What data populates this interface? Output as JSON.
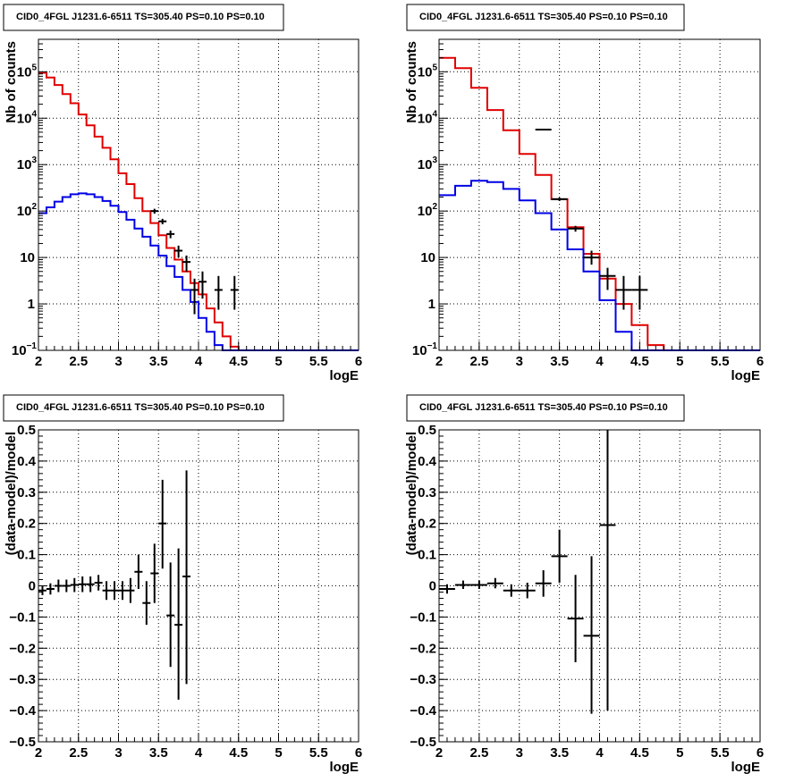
{
  "title_text": "CID0_4FGL J1231.6-6511 TS=305.40 PS=0.10 PS=0.10",
  "colors": {
    "model_total": "#e00000",
    "model_source": "#0000e6",
    "data": "#000000",
    "grid": "#000000"
  },
  "chart_data": [
    {
      "type": "line",
      "panel": "top-left",
      "title": "CID0_4FGL J1231.6-6511 TS=305.40 PS=0.10 PS=0.10",
      "xlabel": "logE",
      "ylabel": "Nb of counts",
      "xlim": [
        2,
        6
      ],
      "ylim": [
        0.1,
        500000
      ],
      "yscale": "log",
      "grid": true,
      "xticks": [
        "2",
        "2.5",
        "3",
        "3.5",
        "4",
        "4.5",
        "5",
        "5.5",
        "6"
      ],
      "yticks": [
        {
          "v": 0.1,
          "base": "10",
          "exp": "−1"
        },
        {
          "v": 1,
          "base": "1",
          "exp": ""
        },
        {
          "v": 10,
          "base": "10",
          "exp": ""
        },
        {
          "v": 100,
          "base": "10",
          "exp": "2"
        },
        {
          "v": 1000,
          "base": "10",
          "exp": "3"
        },
        {
          "v": 10000,
          "base": "10",
          "exp": "4"
        },
        {
          "v": 100000,
          "base": "10",
          "exp": "5"
        }
      ],
      "bin_edges": [
        2.0,
        2.1,
        2.2,
        2.3,
        2.4,
        2.5,
        2.6,
        2.7,
        2.8,
        2.9,
        3.0,
        3.1,
        3.2,
        3.3,
        3.4,
        3.5,
        3.6,
        3.7,
        3.8,
        3.9,
        4.0,
        4.1,
        4.2,
        4.3,
        4.4,
        4.5,
        4.6,
        4.7,
        4.8,
        4.9,
        5.0,
        5.1,
        5.2,
        5.3,
        5.4,
        5.5,
        5.6,
        5.7,
        5.8,
        5.9,
        6.0
      ],
      "series": [
        {
          "role": "model_total",
          "values": [
            95000,
            75000,
            52000,
            33000,
            21000,
            12000,
            7000,
            4000,
            2300,
            1300,
            650,
            380,
            190,
            100,
            55,
            30,
            16,
            9,
            5,
            2.8,
            1.6,
            0.8,
            0.4,
            0.2,
            0.12,
            0.1,
            0.1,
            0.1,
            0.1,
            0.1,
            0.1,
            0.1,
            0.1,
            0.1,
            0.1,
            0.1,
            0.1,
            0.1,
            0.1,
            0.1
          ]
        },
        {
          "role": "model_source",
          "values": [
            90,
            120,
            160,
            200,
            230,
            240,
            230,
            200,
            165,
            130,
            95,
            65,
            42,
            28,
            18,
            11,
            6.5,
            3.8,
            2,
            1.1,
            0.5,
            0.25,
            0.13,
            0.1,
            0.1,
            0.1,
            0.1,
            0.1,
            0.1,
            0.1,
            0.1,
            0.1,
            0.1,
            0.1,
            0.1,
            0.1,
            0.1,
            0.1,
            0.1,
            0.1
          ]
        }
      ],
      "points": [
        {
          "x": 3.45,
          "y": 100,
          "xerr": 0.05,
          "ylo": 88,
          "yhi": 112
        },
        {
          "x": 3.55,
          "y": 60,
          "xerr": 0.05,
          "ylo": 52,
          "yhi": 68
        },
        {
          "x": 3.65,
          "y": 32,
          "xerr": 0.05,
          "ylo": 26,
          "yhi": 38
        },
        {
          "x": 3.75,
          "y": 14,
          "xerr": 0.05,
          "ylo": 10,
          "yhi": 18
        },
        {
          "x": 3.85,
          "y": 8,
          "xerr": 0.05,
          "ylo": 5,
          "yhi": 11
        },
        {
          "x": 3.95,
          "y": 2,
          "xerr": 0.05,
          "ylo": 0.6,
          "yhi": 3.5
        },
        {
          "x": 4.05,
          "y": 3,
          "xerr": 0.05,
          "ylo": 1.3,
          "yhi": 5
        },
        {
          "x": 4.25,
          "y": 2,
          "xerr": 0.05,
          "ylo": 0.75,
          "yhi": 4
        },
        {
          "x": 4.45,
          "y": 2,
          "xerr": 0.05,
          "ylo": 0.75,
          "yhi": 4
        }
      ]
    },
    {
      "type": "line",
      "panel": "top-right",
      "title": "CID0_4FGL J1231.6-6511 TS=305.40 PS=0.10 PS=0.10",
      "xlabel": "logE",
      "ylabel": "Nb of counts",
      "xlim": [
        2,
        6
      ],
      "ylim": [
        0.1,
        500000
      ],
      "yscale": "log",
      "grid": true,
      "xticks": [
        "2",
        "2.5",
        "3",
        "3.5",
        "4",
        "4.5",
        "5",
        "5.5",
        "6"
      ],
      "yticks": [
        {
          "v": 0.1,
          "base": "10",
          "exp": "−1"
        },
        {
          "v": 1,
          "base": "1",
          "exp": ""
        },
        {
          "v": 10,
          "base": "10",
          "exp": ""
        },
        {
          "v": 100,
          "base": "10",
          "exp": "2"
        },
        {
          "v": 1000,
          "base": "10",
          "exp": "3"
        },
        {
          "v": 10000,
          "base": "10",
          "exp": "4"
        },
        {
          "v": 100000,
          "base": "10",
          "exp": "5"
        }
      ],
      "bin_edges": [
        2.0,
        2.2,
        2.4,
        2.6,
        2.8,
        3.0,
        3.2,
        3.4,
        3.6,
        3.8,
        4.0,
        4.2,
        4.4,
        4.6,
        4.8,
        5.0,
        5.2,
        5.4,
        5.6,
        5.8,
        6.0
      ],
      "series": [
        {
          "role": "model_total",
          "values": [
            200000,
            120000,
            45000,
            15000,
            5500,
            1700,
            600,
            180,
            45,
            12,
            3.5,
            1,
            0.35,
            0.13,
            0.1,
            0.1,
            0.1,
            0.1,
            0.1,
            0.1
          ]
        },
        {
          "role": "model_source",
          "values": [
            220,
            350,
            450,
            420,
            300,
            170,
            90,
            40,
            15,
            5,
            1.2,
            0.25,
            0.1,
            0.1,
            0.1,
            0.1,
            0.1,
            0.1,
            0.1,
            0.1
          ]
        }
      ],
      "points": [
        {
          "x": 3.3,
          "y": 5700,
          "xerr": 0.1,
          "ylo": 5500,
          "yhi": 5900
        },
        {
          "x": 3.5,
          "y": 180,
          "xerr": 0.1,
          "ylo": 165,
          "yhi": 195
        },
        {
          "x": 3.7,
          "y": 42,
          "xerr": 0.1,
          "ylo": 36,
          "yhi": 48
        },
        {
          "x": 3.9,
          "y": 10,
          "xerr": 0.1,
          "ylo": 7,
          "yhi": 14
        },
        {
          "x": 4.1,
          "y": 4,
          "xerr": 0.1,
          "ylo": 2,
          "yhi": 6
        },
        {
          "x": 4.3,
          "y": 2,
          "xerr": 0.1,
          "ylo": 0.75,
          "yhi": 4
        },
        {
          "x": 4.5,
          "y": 2,
          "xerr": 0.1,
          "ylo": 0.75,
          "yhi": 4
        }
      ]
    },
    {
      "type": "scatter",
      "panel": "bottom-left",
      "title": "CID0_4FGL J1231.6-6511 TS=305.40 PS=0.10 PS=0.10",
      "xlabel": "logE",
      "ylabel": "(data-model)/model",
      "xlim": [
        2,
        6
      ],
      "ylim": [
        -0.5,
        0.5
      ],
      "yscale": "linear",
      "grid": true,
      "xticks": [
        "2",
        "2.5",
        "3",
        "3.5",
        "4",
        "4.5",
        "5",
        "5.5",
        "6"
      ],
      "yticks": [
        "−0.5",
        "−0.4",
        "−0.3",
        "−0.2",
        "−0.1",
        "0",
        "0.1",
        "0.2",
        "0.3",
        "0.4",
        "0.5"
      ],
      "points": [
        {
          "x": 2.05,
          "y": -0.015,
          "xerr": 0.05,
          "ylo": -0.03,
          "yhi": 0.0
        },
        {
          "x": 2.15,
          "y": -0.01,
          "xerr": 0.05,
          "ylo": -0.028,
          "yhi": 0.008
        },
        {
          "x": 2.25,
          "y": 0.0,
          "xerr": 0.05,
          "ylo": -0.02,
          "yhi": 0.02
        },
        {
          "x": 2.35,
          "y": 0.0,
          "xerr": 0.05,
          "ylo": -0.02,
          "yhi": 0.02
        },
        {
          "x": 2.45,
          "y": 0.003,
          "xerr": 0.05,
          "ylo": -0.02,
          "yhi": 0.025
        },
        {
          "x": 2.55,
          "y": 0.005,
          "xerr": 0.05,
          "ylo": -0.02,
          "yhi": 0.03
        },
        {
          "x": 2.65,
          "y": 0.005,
          "xerr": 0.05,
          "ylo": -0.02,
          "yhi": 0.03
        },
        {
          "x": 2.75,
          "y": 0.01,
          "xerr": 0.05,
          "ylo": -0.015,
          "yhi": 0.035
        },
        {
          "x": 2.85,
          "y": -0.015,
          "xerr": 0.05,
          "ylo": -0.045,
          "yhi": 0.015
        },
        {
          "x": 2.95,
          "y": -0.015,
          "xerr": 0.05,
          "ylo": -0.045,
          "yhi": 0.015
        },
        {
          "x": 3.05,
          "y": -0.015,
          "xerr": 0.05,
          "ylo": -0.045,
          "yhi": 0.015
        },
        {
          "x": 3.15,
          "y": -0.015,
          "xerr": 0.05,
          "ylo": -0.055,
          "yhi": 0.025
        },
        {
          "x": 3.25,
          "y": 0.045,
          "xerr": 0.05,
          "ylo": -0.01,
          "yhi": 0.1
        },
        {
          "x": 3.35,
          "y": -0.055,
          "xerr": 0.05,
          "ylo": -0.125,
          "yhi": 0.015
        },
        {
          "x": 3.45,
          "y": 0.04,
          "xerr": 0.05,
          "ylo": -0.055,
          "yhi": 0.135
        },
        {
          "x": 3.55,
          "y": 0.2,
          "xerr": 0.05,
          "ylo": 0.055,
          "yhi": 0.34
        },
        {
          "x": 3.65,
          "y": -0.095,
          "xerr": 0.05,
          "ylo": -0.26,
          "yhi": 0.075
        },
        {
          "x": 3.75,
          "y": -0.125,
          "xerr": 0.05,
          "ylo": -0.365,
          "yhi": 0.12
        },
        {
          "x": 3.85,
          "y": 0.03,
          "xerr": 0.05,
          "ylo": -0.315,
          "yhi": 0.37
        }
      ]
    },
    {
      "type": "scatter",
      "panel": "bottom-right",
      "title": "CID0_4FGL J1231.6-6511 TS=305.40 PS=0.10 PS=0.10",
      "xlabel": "logE",
      "ylabel": "(data-model)/model",
      "xlim": [
        2,
        6
      ],
      "ylim": [
        -0.5,
        0.5
      ],
      "yscale": "linear",
      "grid": true,
      "xticks": [
        "2",
        "2.5",
        "3",
        "3.5",
        "4",
        "4.5",
        "5",
        "5.5",
        "6"
      ],
      "yticks": [
        "−0.5",
        "−0.4",
        "−0.3",
        "−0.2",
        "−0.1",
        "0",
        "0.1",
        "0.2",
        "0.3",
        "0.4",
        "0.5"
      ],
      "points": [
        {
          "x": 2.1,
          "y": -0.01,
          "xerr": 0.1,
          "ylo": -0.025,
          "yhi": 0.005
        },
        {
          "x": 2.3,
          "y": 0.003,
          "xerr": 0.1,
          "ylo": -0.01,
          "yhi": 0.017
        },
        {
          "x": 2.5,
          "y": 0.003,
          "xerr": 0.1,
          "ylo": -0.01,
          "yhi": 0.017
        },
        {
          "x": 2.7,
          "y": 0.008,
          "xerr": 0.1,
          "ylo": -0.008,
          "yhi": 0.025
        },
        {
          "x": 2.9,
          "y": -0.015,
          "xerr": 0.1,
          "ylo": -0.035,
          "yhi": 0.005
        },
        {
          "x": 3.1,
          "y": -0.015,
          "xerr": 0.1,
          "ylo": -0.04,
          "yhi": 0.01
        },
        {
          "x": 3.3,
          "y": 0.008,
          "xerr": 0.1,
          "ylo": -0.035,
          "yhi": 0.05
        },
        {
          "x": 3.5,
          "y": 0.095,
          "xerr": 0.1,
          "ylo": 0.01,
          "yhi": 0.18
        },
        {
          "x": 3.7,
          "y": -0.105,
          "xerr": 0.1,
          "ylo": -0.245,
          "yhi": 0.035
        },
        {
          "x": 3.9,
          "y": -0.16,
          "xerr": 0.1,
          "ylo": -0.41,
          "yhi": 0.095
        },
        {
          "x": 4.1,
          "y": 0.195,
          "xerr": 0.1,
          "ylo": -0.4,
          "yhi": 0.5
        }
      ]
    }
  ]
}
